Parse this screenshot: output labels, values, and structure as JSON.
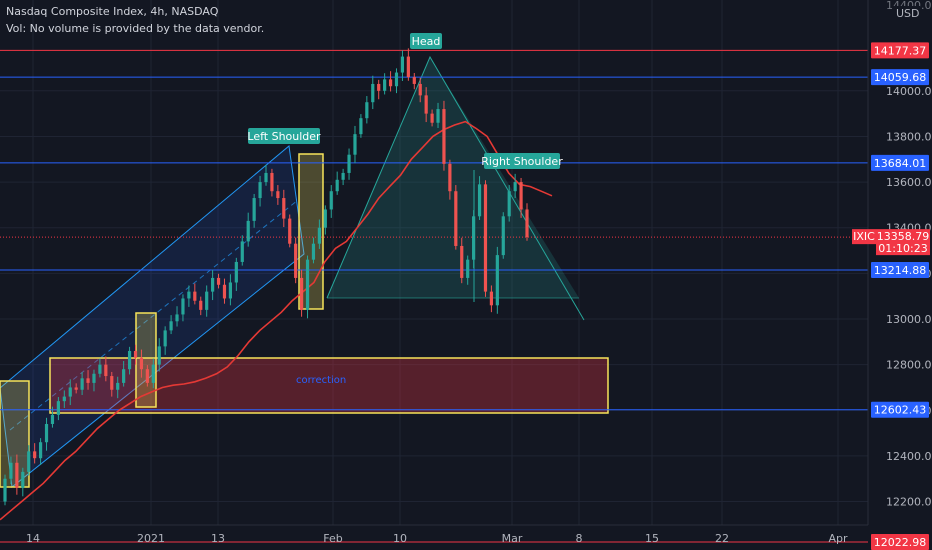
{
  "header": {
    "title": "Nasdaq Composite Index, 4h, NASDAQ",
    "volume_note": "Vol: No volume is provided by the data vendor."
  },
  "price_axis": {
    "currency": "USD",
    "top_partial": "14400.00"
  },
  "current_price": {
    "symbol": "IXIC",
    "value": "13358.79",
    "countdown": "01:10:23",
    "color": "#f23645"
  },
  "annotations": {
    "head": "Head",
    "left_shoulder": "Left Shoulder",
    "right_shoulder": "Right Shoulder",
    "correction": "correction"
  },
  "colors": {
    "background": "#131722",
    "up": "#26a69a",
    "down": "#ef5350",
    "level_blue": "#2962ff",
    "level_red": "#f23645",
    "ma": "#e53935",
    "highlight": "#f7e45a"
  },
  "chart_data": {
    "type": "candlestick",
    "title": "Nasdaq Composite Index, 4h, NASDAQ",
    "x_tick_labels": [
      "14",
      "2021",
      "13",
      "Feb",
      "10",
      "Mar",
      "8",
      "15",
      "22",
      "Apr"
    ],
    "y_tick_labels": [
      "14000.00",
      "13800.00",
      "13600.00",
      "13400.00",
      "13200.00",
      "13000.00",
      "12800.00",
      "12600.00",
      "12400.00",
      "12200.00"
    ],
    "ylim": [
      12000,
      14420
    ],
    "levels": [
      {
        "value": 14177.37,
        "label": "14177.37",
        "color": "#f23645"
      },
      {
        "value": 14059.68,
        "label": "14059.68",
        "color": "#2962ff"
      },
      {
        "value": 13684.01,
        "label": "13684.01",
        "color": "#2962ff"
      },
      {
        "value": 13214.88,
        "label": "13214.88",
        "color": "#2962ff"
      },
      {
        "value": 12602.43,
        "label": "12602.43",
        "color": "#2962ff"
      },
      {
        "value": 12022.98,
        "label": "12022.98",
        "color": "#f23645"
      }
    ],
    "ohlc_close_series": [
      12300,
      12370,
      12260,
      12330,
      12420,
      12390,
      12460,
      12540,
      12580,
      12640,
      12660,
      12700,
      12690,
      12740,
      12720,
      12760,
      12800,
      12750,
      12690,
      12720,
      12780,
      12860,
      12830,
      12780,
      12720,
      12800,
      12880,
      12950,
      12990,
      13020,
      13090,
      13120,
      13080,
      13040,
      13120,
      13180,
      13150,
      13090,
      13160,
      13250,
      13340,
      13430,
      13530,
      13600,
      13640,
      13560,
      13530,
      13440,
      13330,
      13180,
      13040,
      13260,
      13330,
      13400,
      13480,
      13560,
      13610,
      13640,
      13720,
      13810,
      13880,
      13950,
      14030,
      14000,
      14050,
      14020,
      14080,
      14150,
      14060,
      14030,
      13980,
      13900,
      13860,
      13920,
      13680,
      13560,
      13320,
      13180,
      13260,
      13450,
      13590,
      13120,
      13060,
      13280,
      13450,
      13560,
      13600,
      13480,
      13358.79
    ],
    "ma_series": [
      12120,
      12160,
      12200,
      12240,
      12280,
      12330,
      12380,
      12420,
      12470,
      12520,
      12560,
      12600,
      12630,
      12660,
      12680,
      12700,
      12710,
      12715,
      12725,
      12740,
      12760,
      12790,
      12840,
      12900,
      12950,
      12990,
      13030,
      13080,
      13120,
      13160,
      13250,
      13310,
      13340,
      13400,
      13460,
      13530,
      13580,
      13630,
      13700,
      13750,
      13800,
      13830,
      13850,
      13865,
      13835,
      13800,
      13720,
      13640,
      13590,
      13580,
      13560,
      13540
    ]
  }
}
